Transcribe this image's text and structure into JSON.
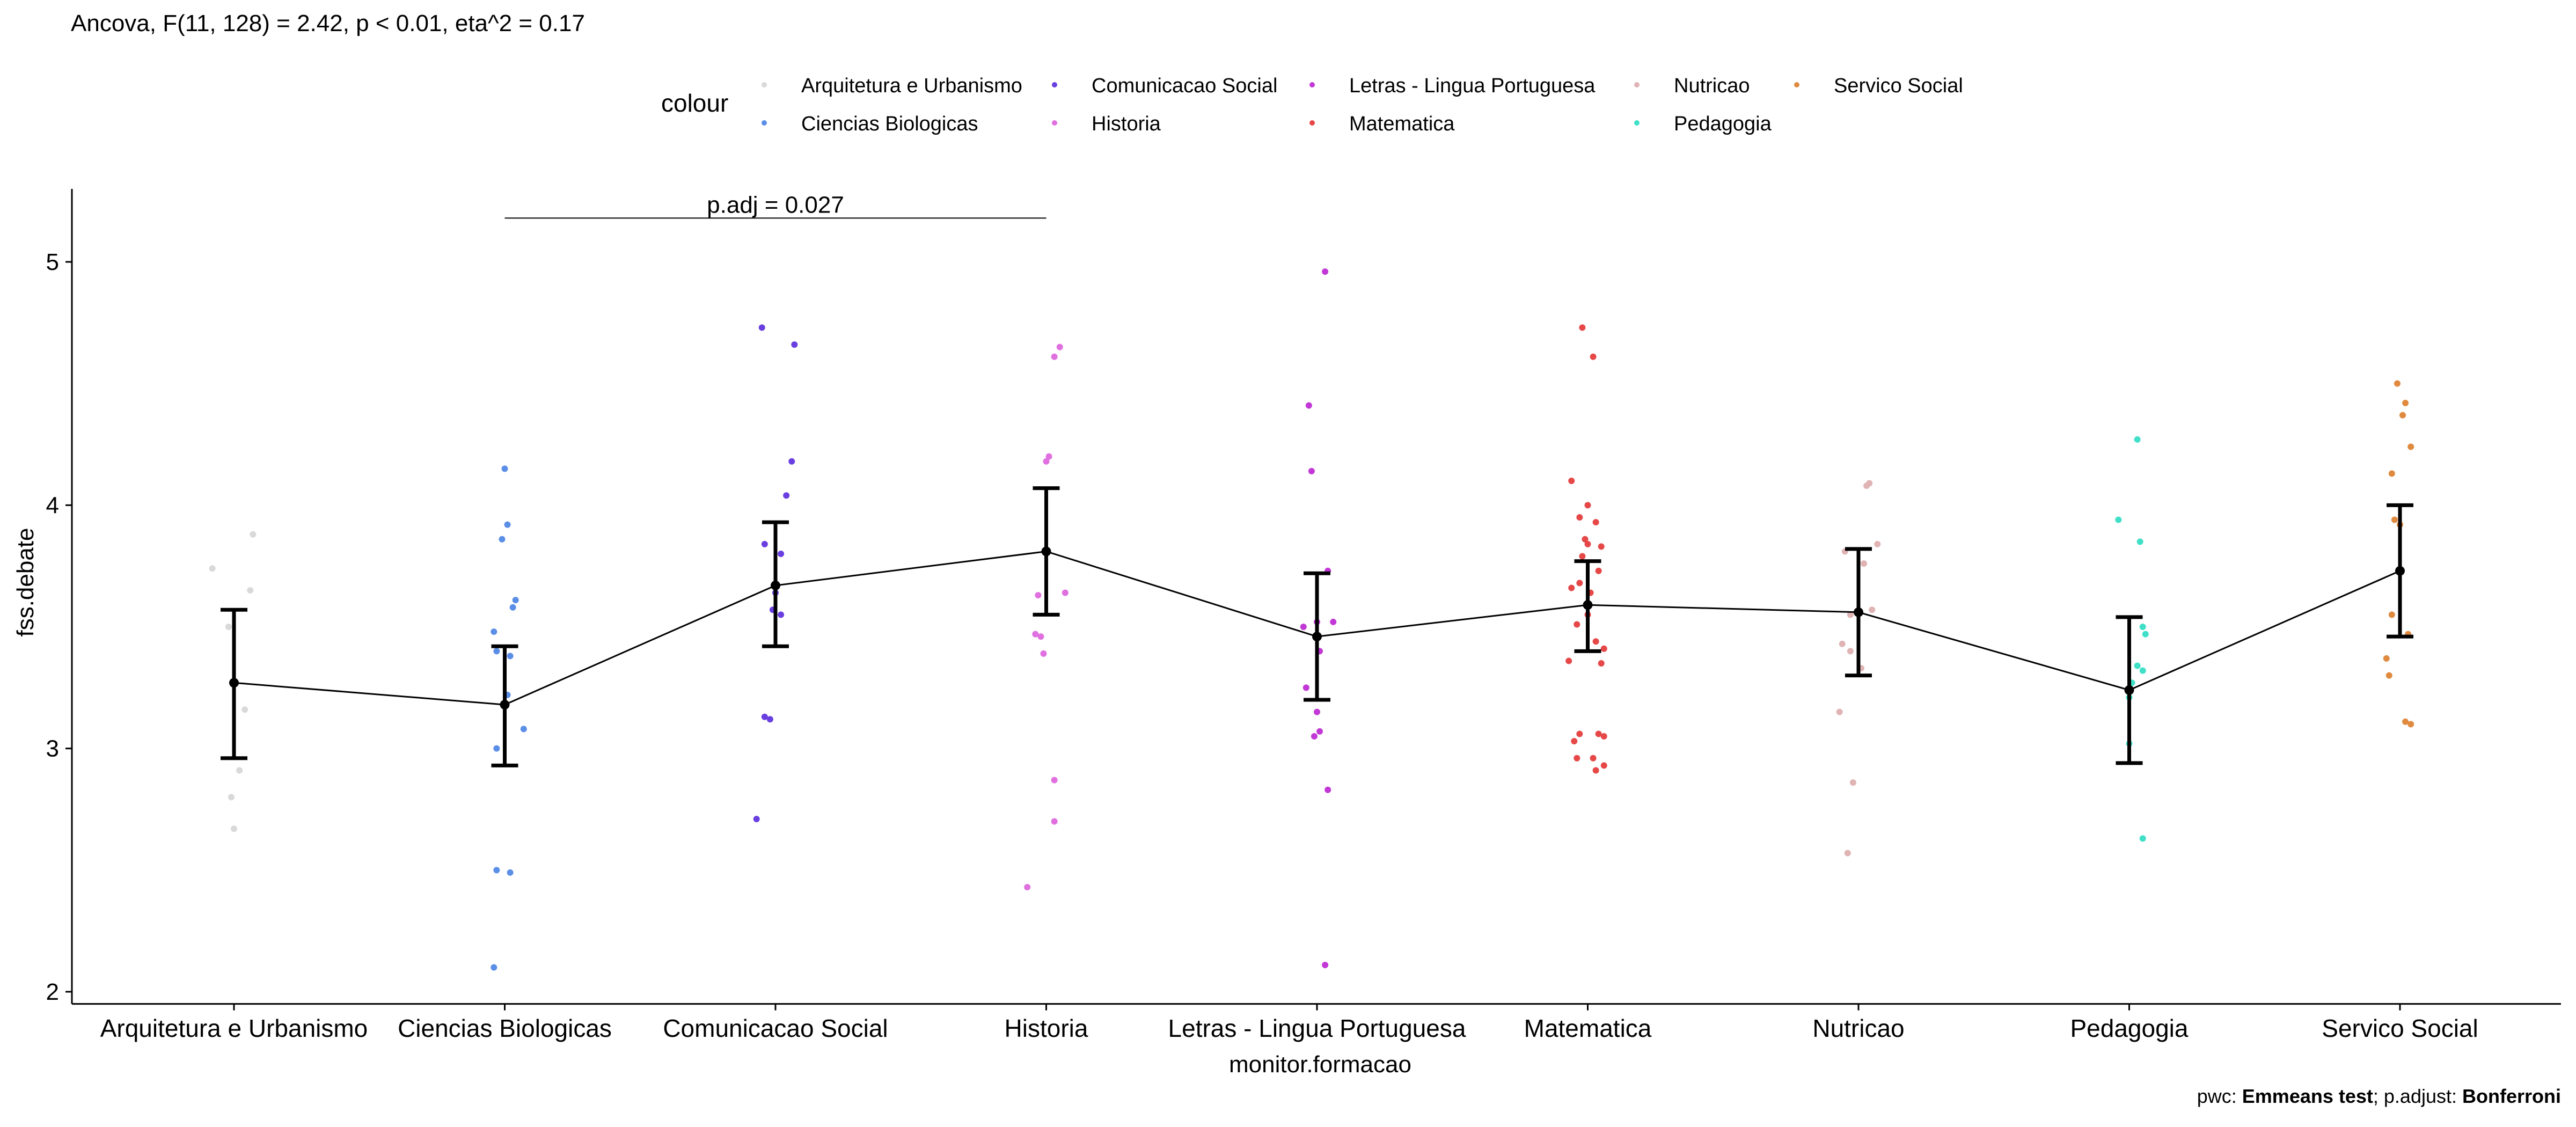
{
  "chart_data": {
    "type": "scatter",
    "subtitle": "Ancova, F(11, 128) = 2.42, p < 0.01, eta^2 = 0.17",
    "caption_parts": [
      "pwc: ",
      "Emmeans test",
      "; p.adjust: ",
      "Bonferroni"
    ],
    "xlabel": "monitor.formacao",
    "ylabel": "fss.debate",
    "ylim": [
      1.95,
      5.3
    ],
    "yticks": [
      2,
      3,
      4,
      5
    ],
    "legend": {
      "title": "colour",
      "position": "top"
    },
    "categories": [
      "Arquitetura e Urbanismo",
      "Ciencias Biologicas",
      "Comunicacao Social",
      "Historia",
      "Letras - Lingua Portuguesa",
      "Matematica",
      "Nutricao",
      "Pedagogia",
      "Servico Social"
    ],
    "colors": {
      "Arquitetura e Urbanismo": "#d9d9d9",
      "Ciencias Biologicas": "#5b8ee6",
      "Comunicacao Social": "#6a3fe0",
      "Historia": "#e070e0",
      "Letras - Lingua Portuguesa": "#c238d6",
      "Matematica": "#e64848",
      "Nutricao": "#e0b4b4",
      "Pedagogia": "#40e0c8",
      "Servico Social": "#e08a40"
    },
    "legend_rows": [
      [
        "Arquitetura e Urbanismo",
        "Comunicacao Social",
        "Letras - Lingua Portuguesa",
        "Nutricao",
        "Servico Social"
      ],
      [
        "Ciencias Biologicas",
        "Historia",
        "Matematica",
        "Pedagogia"
      ]
    ],
    "means": [
      {
        "x": "Arquitetura e Urbanismo",
        "mean": 3.27,
        "lower": 2.96,
        "upper": 3.57
      },
      {
        "x": "Ciencias Biologicas",
        "mean": 3.18,
        "lower": 2.93,
        "upper": 3.42
      },
      {
        "x": "Comunicacao Social",
        "mean": 3.67,
        "lower": 3.42,
        "upper": 3.93
      },
      {
        "x": "Historia",
        "mean": 3.81,
        "lower": 3.55,
        "upper": 4.07
      },
      {
        "x": "Letras - Lingua Portuguesa",
        "mean": 3.46,
        "lower": 3.2,
        "upper": 3.72
      },
      {
        "x": "Matematica",
        "mean": 3.59,
        "lower": 3.4,
        "upper": 3.77
      },
      {
        "x": "Nutricao",
        "mean": 3.56,
        "lower": 3.3,
        "upper": 3.82
      },
      {
        "x": "Pedagogia",
        "mean": 3.24,
        "lower": 2.94,
        "upper": 3.54
      },
      {
        "x": "Servico Social",
        "mean": 3.73,
        "lower": 3.46,
        "upper": 4.0
      }
    ],
    "points": {
      "Arquitetura e Urbanismo": [
        [
          -0.08,
          3.74
        ],
        [
          0.07,
          3.88
        ],
        [
          0.06,
          3.65
        ],
        [
          -0.02,
          3.5
        ],
        [
          0.04,
          3.16
        ],
        [
          0.02,
          2.91
        ],
        [
          -0.01,
          2.8
        ],
        [
          0.0,
          2.67
        ]
      ],
      "Ciencias Biologicas": [
        [
          0.0,
          4.15
        ],
        [
          0.01,
          3.92
        ],
        [
          -0.01,
          3.86
        ],
        [
          0.04,
          3.61
        ],
        [
          0.03,
          3.58
        ],
        [
          -0.04,
          3.48
        ],
        [
          0.02,
          3.38
        ],
        [
          -0.03,
          3.4
        ],
        [
          0.01,
          3.22
        ],
        [
          0.07,
          3.08
        ],
        [
          -0.03,
          3.0
        ],
        [
          -0.03,
          2.5
        ],
        [
          0.02,
          2.49
        ],
        [
          -0.04,
          2.1
        ]
      ],
      "Comunicacao Social": [
        [
          -0.05,
          4.73
        ],
        [
          0.07,
          4.66
        ],
        [
          0.06,
          4.18
        ],
        [
          0.04,
          4.04
        ],
        [
          -0.04,
          3.84
        ],
        [
          0.02,
          3.8
        ],
        [
          0.0,
          3.64
        ],
        [
          -0.01,
          3.57
        ],
        [
          0.02,
          3.55
        ],
        [
          -0.04,
          3.13
        ],
        [
          -0.02,
          3.12
        ],
        [
          -0.07,
          2.71
        ]
      ],
      "Historia": [
        [
          0.05,
          4.65
        ],
        [
          0.03,
          4.61
        ],
        [
          0.01,
          4.2
        ],
        [
          0.0,
          4.18
        ],
        [
          -0.03,
          3.63
        ],
        [
          0.07,
          3.64
        ],
        [
          -0.04,
          3.47
        ],
        [
          -0.02,
          3.46
        ],
        [
          -0.01,
          3.39
        ],
        [
          0.03,
          2.87
        ],
        [
          0.03,
          2.7
        ],
        [
          -0.07,
          2.43
        ]
      ],
      "Letras - Lingua Portuguesa": [
        [
          0.03,
          4.96
        ],
        [
          -0.03,
          4.41
        ],
        [
          -0.02,
          4.14
        ],
        [
          0.04,
          3.73
        ],
        [
          0.0,
          3.52
        ],
        [
          0.06,
          3.52
        ],
        [
          -0.05,
          3.5
        ],
        [
          0.01,
          3.4
        ],
        [
          -0.04,
          3.25
        ],
        [
          0.0,
          3.15
        ],
        [
          0.01,
          3.07
        ],
        [
          -0.01,
          3.05
        ],
        [
          0.04,
          2.83
        ],
        [
          0.03,
          2.11
        ]
      ],
      "Matematica": [
        [
          -0.02,
          4.73
        ],
        [
          0.02,
          4.61
        ],
        [
          -0.06,
          4.1
        ],
        [
          0.0,
          4.0
        ],
        [
          -0.03,
          3.95
        ],
        [
          0.03,
          3.93
        ],
        [
          -0.01,
          3.86
        ],
        [
          0.0,
          3.84
        ],
        [
          0.05,
          3.83
        ],
        [
          -0.02,
          3.79
        ],
        [
          0.04,
          3.73
        ],
        [
          -0.03,
          3.68
        ],
        [
          -0.06,
          3.66
        ],
        [
          0.01,
          3.64
        ],
        [
          0.0,
          3.55
        ],
        [
          -0.04,
          3.51
        ],
        [
          0.03,
          3.44
        ],
        [
          0.06,
          3.41
        ],
        [
          -0.07,
          3.36
        ],
        [
          0.05,
          3.35
        ],
        [
          -0.03,
          3.06
        ],
        [
          0.04,
          3.06
        ],
        [
          0.06,
          3.05
        ],
        [
          -0.05,
          3.03
        ],
        [
          -0.04,
          2.96
        ],
        [
          0.02,
          2.96
        ],
        [
          0.06,
          2.93
        ],
        [
          0.03,
          2.91
        ]
      ],
      "Nutricao": [
        [
          0.04,
          4.09
        ],
        [
          0.03,
          4.08
        ],
        [
          0.07,
          3.84
        ],
        [
          -0.05,
          3.81
        ],
        [
          0.02,
          3.76
        ],
        [
          -0.03,
          3.55
        ],
        [
          0.05,
          3.57
        ],
        [
          -0.06,
          3.43
        ],
        [
          -0.03,
          3.4
        ],
        [
          0.01,
          3.33
        ],
        [
          -0.07,
          3.15
        ],
        [
          -0.02,
          2.86
        ],
        [
          -0.04,
          2.57
        ]
      ],
      "Pedagogia": [
        [
          0.03,
          4.27
        ],
        [
          -0.04,
          3.94
        ],
        [
          0.04,
          3.85
        ],
        [
          0.05,
          3.5
        ],
        [
          0.06,
          3.47
        ],
        [
          0.03,
          3.34
        ],
        [
          0.05,
          3.32
        ],
        [
          0.01,
          3.27
        ],
        [
          0.0,
          3.21
        ],
        [
          0.0,
          3.02
        ],
        [
          0.05,
          2.63
        ]
      ],
      "Servico Social": [
        [
          -0.01,
          4.5
        ],
        [
          0.02,
          4.42
        ],
        [
          0.01,
          4.37
        ],
        [
          0.04,
          4.24
        ],
        [
          -0.03,
          4.13
        ],
        [
          -0.02,
          3.94
        ],
        [
          0.0,
          3.92
        ],
        [
          -0.03,
          3.55
        ],
        [
          0.03,
          3.47
        ],
        [
          -0.05,
          3.37
        ],
        [
          -0.04,
          3.3
        ],
        [
          0.02,
          3.11
        ],
        [
          0.04,
          3.1
        ]
      ]
    },
    "annotation": {
      "label": "p.adj = 0.027",
      "from": "Ciencias Biologicas",
      "to": "Historia",
      "y": 5.18
    }
  }
}
